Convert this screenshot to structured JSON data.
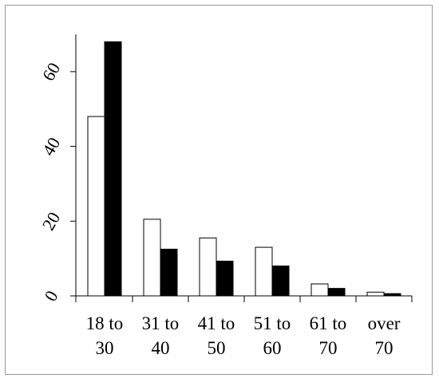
{
  "chart_data": {
    "type": "bar",
    "categories": [
      [
        "18 to",
        "30"
      ],
      [
        "31 to",
        "40"
      ],
      [
        "41 to",
        "50"
      ],
      [
        "51 to",
        "60"
      ],
      [
        "61 to",
        "70"
      ],
      [
        "over",
        "70"
      ]
    ],
    "series": [
      {
        "color": "#ffffff",
        "values": [
          48,
          20.5,
          15.5,
          13,
          3.2,
          1
        ]
      },
      {
        "color": "#000000",
        "values": [
          68,
          12.5,
          9.3,
          8,
          2,
          0.6
        ]
      }
    ],
    "ylim": [
      0,
      70
    ],
    "yticks": [
      0,
      20,
      40,
      60
    ],
    "ytick_labels": [
      "0",
      "20",
      "40",
      "60"
    ],
    "ytick_rotation": -60,
    "grid": false,
    "legend": "none",
    "title": "",
    "xlabel": "",
    "ylabel": ""
  }
}
